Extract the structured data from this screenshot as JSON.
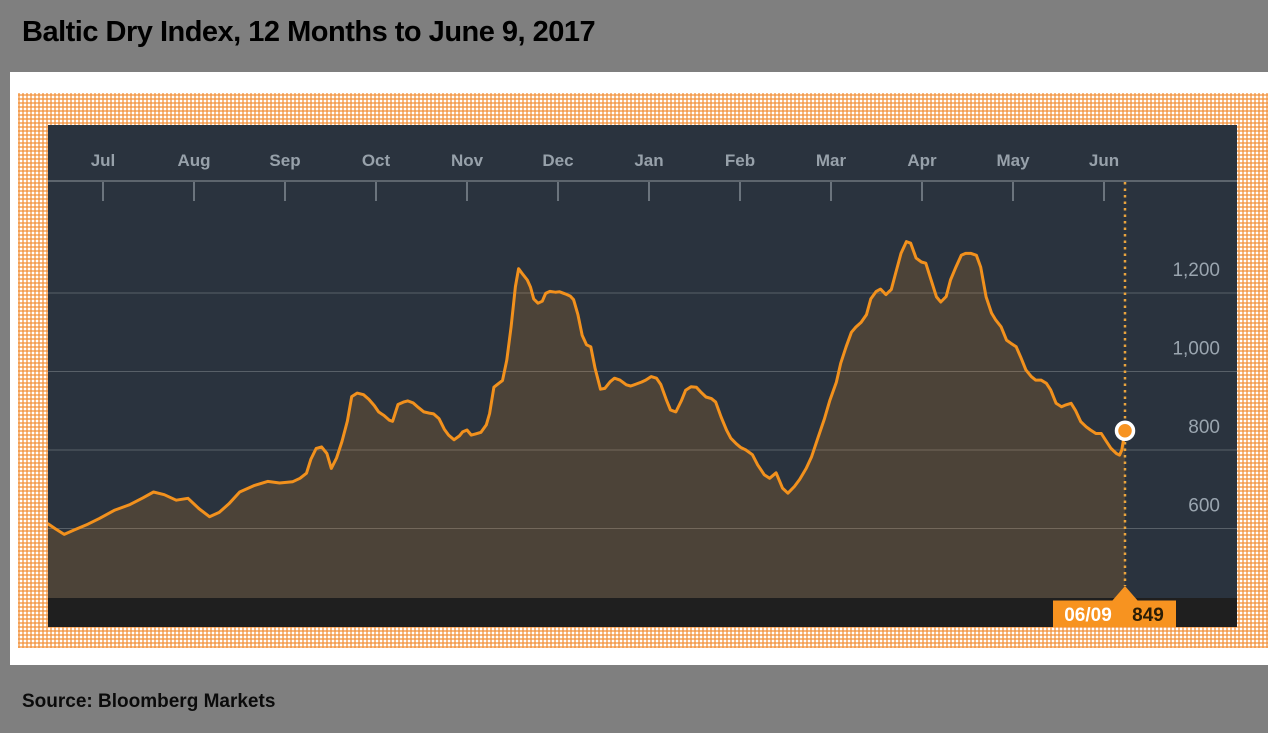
{
  "title": "Baltic Dry Index, 12 Months to June 9, 2017",
  "source": "Source: Bloomberg Markets",
  "callout": {
    "date": "06/09",
    "value": "849"
  },
  "colors": {
    "page_bg": "#7f7f7f",
    "panel_white": "#ffffff",
    "pattern_orange": "#f28f37",
    "plot_bg": "#2a333e",
    "area_fill_overlay": "rgba(247,148,30,0.17)",
    "gridline": "#5d656d",
    "tick": "#6b747d",
    "axis_text": "#97a1aa",
    "line_orange": "#f2911d",
    "dotted_line": "#e9a43e",
    "marker_fill": "#f79320",
    "marker_ring": "#ffffff",
    "bottom_bar": "#1f1f1f",
    "callout_bg": "#f79320",
    "callout_date_text": "#ffffff",
    "callout_value_text": "#2b1d06",
    "title_text": "#000000"
  },
  "chart_data": {
    "type": "area",
    "title": "Baltic Dry Index, 12 Months to June 9, 2017",
    "xlabel": "",
    "ylabel": "",
    "x_tick_labels": [
      "Jul",
      "Aug",
      "Sep",
      "Oct",
      "Nov",
      "Dec",
      "Jan",
      "Feb",
      "Mar",
      "Apr",
      "May",
      "Jun"
    ],
    "y_tick_labels": [
      "600",
      "800",
      "1,000",
      "1,200"
    ],
    "y_tick_values": [
      600,
      800,
      1000,
      1200
    ],
    "ylim": [
      423,
      1486
    ],
    "grid": "horizontal",
    "legend": "none",
    "last_point": {
      "date": "06/09",
      "value": 849
    },
    "series": [
      {
        "name": "Baltic Dry Index",
        "points": [
          [
            0,
            612
          ],
          [
            0.007,
            599
          ],
          [
            0.015,
            585
          ],
          [
            0.024,
            596
          ],
          [
            0.037,
            611
          ],
          [
            0.048,
            626
          ],
          [
            0.062,
            647
          ],
          [
            0.076,
            661
          ],
          [
            0.088,
            678
          ],
          [
            0.098,
            693
          ],
          [
            0.108,
            686
          ],
          [
            0.119,
            672
          ],
          [
            0.13,
            677
          ],
          [
            0.14,
            651
          ],
          [
            0.15,
            630
          ],
          [
            0.159,
            641
          ],
          [
            0.168,
            663
          ],
          [
            0.178,
            693
          ],
          [
            0.191,
            709
          ],
          [
            0.204,
            720
          ],
          [
            0.215,
            716
          ],
          [
            0.227,
            719
          ],
          [
            0.234,
            728
          ],
          [
            0.24,
            741
          ],
          [
            0.244,
            776
          ],
          [
            0.249,
            804
          ],
          [
            0.254,
            808
          ],
          [
            0.259,
            791
          ],
          [
            0.263,
            753
          ],
          [
            0.268,
            780
          ],
          [
            0.273,
            822
          ],
          [
            0.278,
            874
          ],
          [
            0.282,
            936
          ],
          [
            0.287,
            945
          ],
          [
            0.293,
            941
          ],
          [
            0.298,
            929
          ],
          [
            0.303,
            913
          ],
          [
            0.307,
            897
          ],
          [
            0.312,
            888
          ],
          [
            0.317,
            876
          ],
          [
            0.32,
            873
          ],
          [
            0.325,
            916
          ],
          [
            0.33,
            922
          ],
          [
            0.334,
            925
          ],
          [
            0.339,
            920
          ],
          [
            0.344,
            908
          ],
          [
            0.349,
            897
          ],
          [
            0.354,
            894
          ],
          [
            0.358,
            892
          ],
          [
            0.363,
            880
          ],
          [
            0.368,
            853
          ],
          [
            0.372,
            838
          ],
          [
            0.377,
            826
          ],
          [
            0.382,
            836
          ],
          [
            0.385,
            846
          ],
          [
            0.389,
            851
          ],
          [
            0.393,
            838
          ],
          [
            0.397,
            841
          ],
          [
            0.402,
            845
          ],
          [
            0.407,
            864
          ],
          [
            0.41,
            893
          ],
          [
            0.414,
            960
          ],
          [
            0.419,
            971
          ],
          [
            0.422,
            977
          ],
          [
            0.426,
            1029
          ],
          [
            0.43,
            1114
          ],
          [
            0.434,
            1216
          ],
          [
            0.437,
            1262
          ],
          [
            0.441,
            1247
          ],
          [
            0.445,
            1233
          ],
          [
            0.448,
            1215
          ],
          [
            0.451,
            1185
          ],
          [
            0.455,
            1174
          ],
          [
            0.459,
            1179
          ],
          [
            0.462,
            1199
          ],
          [
            0.466,
            1204
          ],
          [
            0.471,
            1202
          ],
          [
            0.475,
            1203
          ],
          [
            0.48,
            1198
          ],
          [
            0.485,
            1192
          ],
          [
            0.488,
            1183
          ],
          [
            0.492,
            1145
          ],
          [
            0.496,
            1092
          ],
          [
            0.5,
            1068
          ],
          [
            0.504,
            1063
          ],
          [
            0.508,
            1008
          ],
          [
            0.513,
            955
          ],
          [
            0.517,
            957
          ],
          [
            0.522,
            974
          ],
          [
            0.526,
            983
          ],
          [
            0.531,
            978
          ],
          [
            0.537,
            966
          ],
          [
            0.541,
            963
          ],
          [
            0.546,
            968
          ],
          [
            0.551,
            973
          ],
          [
            0.555,
            978
          ],
          [
            0.56,
            987
          ],
          [
            0.565,
            983
          ],
          [
            0.569,
            967
          ],
          [
            0.574,
            929
          ],
          [
            0.578,
            902
          ],
          [
            0.583,
            897
          ],
          [
            0.588,
            925
          ],
          [
            0.592,
            952
          ],
          [
            0.597,
            961
          ],
          [
            0.602,
            960
          ],
          [
            0.606,
            948
          ],
          [
            0.611,
            935
          ],
          [
            0.616,
            931
          ],
          [
            0.62,
            922
          ],
          [
            0.625,
            884
          ],
          [
            0.63,
            851
          ],
          [
            0.634,
            830
          ],
          [
            0.639,
            816
          ],
          [
            0.643,
            807
          ],
          [
            0.648,
            800
          ],
          [
            0.654,
            788
          ],
          [
            0.659,
            762
          ],
          [
            0.665,
            737
          ],
          [
            0.67,
            728
          ],
          [
            0.676,
            742
          ],
          [
            0.682,
            703
          ],
          [
            0.687,
            690
          ],
          [
            0.693,
            707
          ],
          [
            0.698,
            725
          ],
          [
            0.704,
            753
          ],
          [
            0.709,
            783
          ],
          [
            0.715,
            832
          ],
          [
            0.721,
            880
          ],
          [
            0.726,
            927
          ],
          [
            0.732,
            973
          ],
          [
            0.736,
            1021
          ],
          [
            0.741,
            1063
          ],
          [
            0.746,
            1100
          ],
          [
            0.75,
            1113
          ],
          [
            0.755,
            1125
          ],
          [
            0.76,
            1145
          ],
          [
            0.764,
            1185
          ],
          [
            0.769,
            1204
          ],
          [
            0.773,
            1210
          ],
          [
            0.778,
            1196
          ],
          [
            0.783,
            1209
          ],
          [
            0.787,
            1250
          ],
          [
            0.792,
            1301
          ],
          [
            0.797,
            1331
          ],
          [
            0.801,
            1327
          ],
          [
            0.806,
            1289
          ],
          [
            0.811,
            1279
          ],
          [
            0.815,
            1276
          ],
          [
            0.82,
            1233
          ],
          [
            0.825,
            1190
          ],
          [
            0.829,
            1177
          ],
          [
            0.834,
            1191
          ],
          [
            0.838,
            1233
          ],
          [
            0.843,
            1266
          ],
          [
            0.848,
            1296
          ],
          [
            0.852,
            1301
          ],
          [
            0.857,
            1301
          ],
          [
            0.862,
            1296
          ],
          [
            0.866,
            1266
          ],
          [
            0.871,
            1190
          ],
          [
            0.876,
            1149
          ],
          [
            0.88,
            1131
          ],
          [
            0.885,
            1114
          ],
          [
            0.89,
            1080
          ],
          [
            0.894,
            1072
          ],
          [
            0.899,
            1063
          ],
          [
            0.903,
            1038
          ],
          [
            0.908,
            1004
          ],
          [
            0.913,
            987
          ],
          [
            0.917,
            978
          ],
          [
            0.922,
            978
          ],
          [
            0.927,
            970
          ],
          [
            0.931,
            953
          ],
          [
            0.936,
            919
          ],
          [
            0.941,
            910
          ],
          [
            0.945,
            915
          ],
          [
            0.95,
            919
          ],
          [
            0.954,
            901
          ],
          [
            0.959,
            872
          ],
          [
            0.964,
            859
          ],
          [
            0.968,
            851
          ],
          [
            0.973,
            842
          ],
          [
            0.978,
            842
          ],
          [
            0.982,
            825
          ],
          [
            0.987,
            804
          ],
          [
            0.992,
            791
          ],
          [
            0.995,
            787
          ],
          [
            0.997,
            800
          ],
          [
            1,
            849
          ]
        ]
      }
    ]
  }
}
